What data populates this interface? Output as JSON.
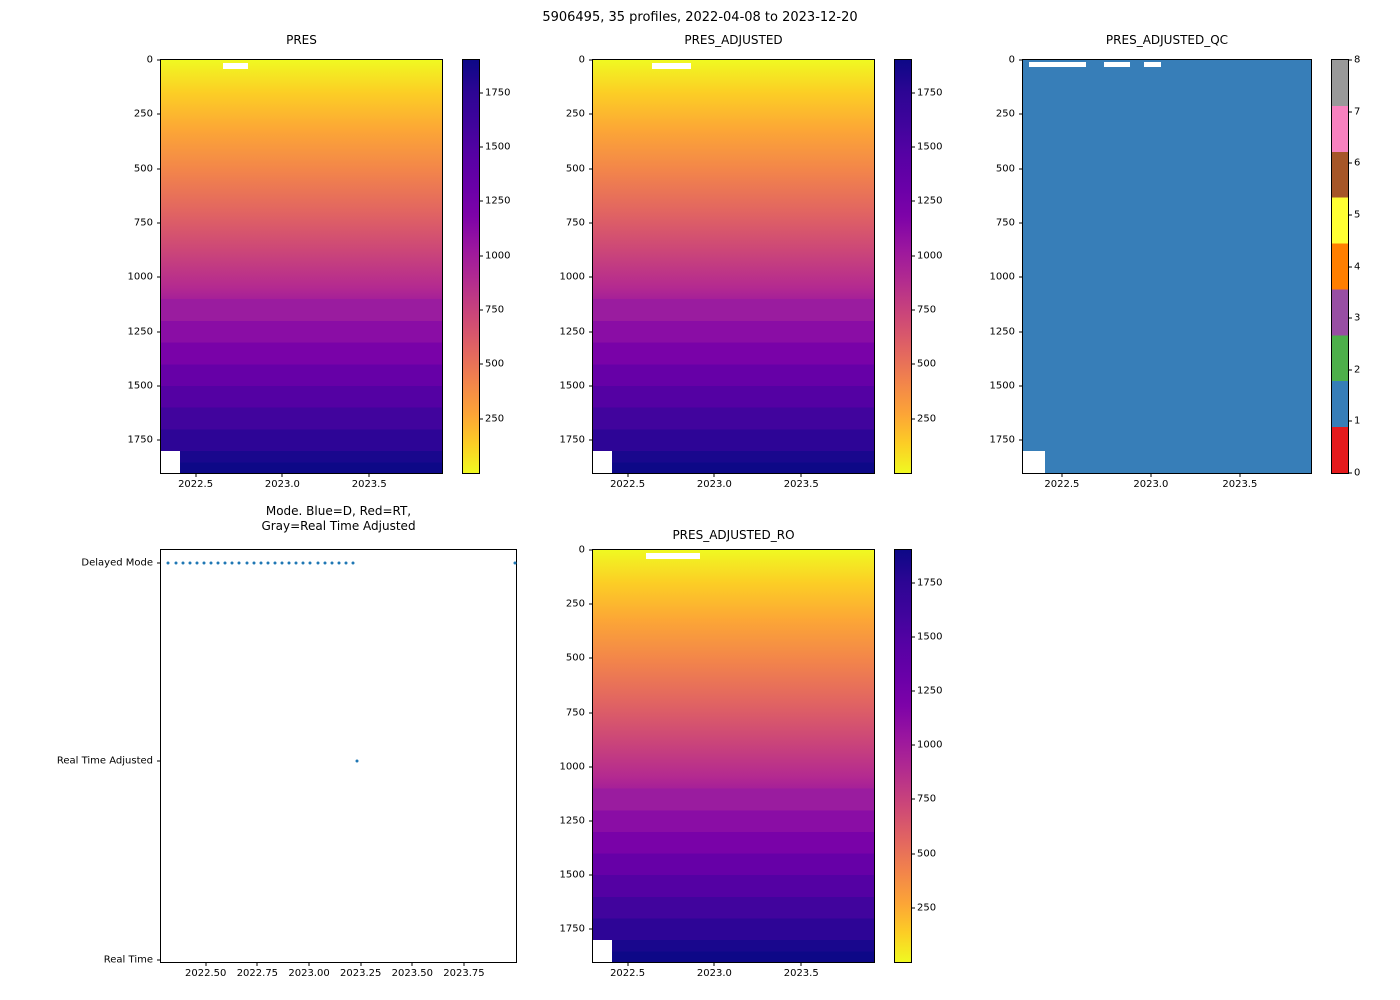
{
  "figure": {
    "suptitle": "5906495, 35 profiles, 2022-04-08 to 2023-12-20"
  },
  "panels": {
    "pres": {
      "title": "PRES"
    },
    "pres_adjusted": {
      "title": "PRES_ADJUSTED"
    },
    "pres_adjusted_qc": {
      "title": "PRES_ADJUSTED_QC"
    },
    "mode": {
      "title_line1": "Mode. Blue=D, Red=RT,",
      "title_line2": "Gray=Real Time Adjusted"
    },
    "pres_adjusted_ro": {
      "title": "PRES_ADJUSTED_RO"
    }
  },
  "ticks": {
    "depth": [
      "0",
      "250",
      "500",
      "750",
      "1000",
      "1250",
      "1500",
      "1750"
    ],
    "year_short": [
      "2022.5",
      "2023.0",
      "2023.5"
    ],
    "year_long": [
      "2022.50",
      "2022.75",
      "2023.00",
      "2023.25",
      "2023.50",
      "2023.75"
    ],
    "pressure_cb": [
      "1750",
      "1500",
      "1250",
      "1000",
      "750",
      "500",
      "250"
    ],
    "qc_cb": [
      "8",
      "7",
      "6",
      "5",
      "4",
      "3",
      "2",
      "1",
      "0"
    ],
    "mode_y": [
      "Delayed Mode",
      "Real Time Adjusted",
      "Real Time"
    ]
  },
  "colors": {
    "qc_fill": "#377eb8",
    "marker": "#1f77b4",
    "plasma_low": "#f0f921",
    "plasma_high": "#0d0887",
    "qc_categories": [
      "#e41a1c",
      "#377eb8",
      "#4daf4a",
      "#984ea3",
      "#ff7f00",
      "#ffff33",
      "#a65628",
      "#f781bf",
      "#999999"
    ]
  },
  "chart_data": [
    {
      "id": "pres",
      "type": "heatmap",
      "title": "PRES",
      "x_range": [
        2022.3,
        2023.92
      ],
      "x_ticks": [
        2022.5,
        2023.0,
        2023.5
      ],
      "y_range": [
        0,
        1900
      ],
      "y_ticks": [
        0,
        250,
        500,
        750,
        1000,
        1250,
        1500,
        1750
      ],
      "value_range": [
        0,
        1900
      ],
      "colorbar_ticks": [
        250,
        500,
        750,
        1000,
        1250,
        1500,
        1750
      ],
      "colormap": "plasma reversed (yellow = low pressure at surface, dark navy = high pressure at depth)",
      "pattern": "pressure increases approximately linearly with depth for all 35 profiles; discrete banding visible below ~1100",
      "missing": [
        "thin white gap near surface around 2022.7",
        "white block below ~1800 before ~2022.35"
      ]
    },
    {
      "id": "pres_adjusted",
      "type": "heatmap",
      "title": "PRES_ADJUSTED",
      "x_range": [
        2022.3,
        2023.92
      ],
      "x_ticks": [
        2022.5,
        2023.0,
        2023.5
      ],
      "y_range": [
        0,
        1900
      ],
      "y_ticks": [
        0,
        250,
        500,
        750,
        1000,
        1250,
        1500,
        1750
      ],
      "value_range": [
        0,
        1900
      ],
      "colorbar_ticks": [
        250,
        500,
        750,
        1000,
        1250,
        1500,
        1750
      ],
      "colormap": "plasma reversed",
      "pattern": "same as PRES: pressure ~ depth, 0 to ~1900 dbar",
      "missing": [
        "thin white gap near surface around 2022.7",
        "white block below ~1800 before ~2022.35"
      ]
    },
    {
      "id": "pres_adjusted_qc",
      "type": "heatmap",
      "title": "PRES_ADJUSTED_QC",
      "x_range": [
        2022.3,
        2023.92
      ],
      "x_ticks": [
        2022.5,
        2023.0,
        2023.5
      ],
      "y_range": [
        0,
        1900
      ],
      "y_ticks": [
        0,
        250,
        500,
        750,
        1000,
        1250,
        1500,
        1750
      ],
      "values": "QC flag = 1 everywhere shown (solid blue)",
      "colorbar_ticks": [
        0,
        1,
        2,
        3,
        4,
        5,
        6,
        7,
        8
      ],
      "colorbar_colors": [
        "red",
        "blue",
        "green",
        "purple",
        "orange",
        "yellow",
        "brown",
        "pink",
        "gray"
      ],
      "missing": [
        "thin white gaps near surface between ~2022.3 and ~2023.0",
        "white block below ~1800 before ~2022.35"
      ]
    },
    {
      "id": "mode",
      "type": "scatter",
      "title": "Mode. Blue=D, Red=RT, Gray=Real Time Adjusted",
      "x_ticks": [
        2022.5,
        2022.75,
        2023.0,
        2023.25,
        2023.5,
        2023.75
      ],
      "x_range": [
        2022.284,
        2023.996
      ],
      "y_categories": [
        "Delayed Mode",
        "Real Time Adjusted",
        "Real Time"
      ],
      "marker_color": "#1f77b4",
      "series": [
        {
          "name": "delayed-mode-run",
          "y": "Delayed Mode",
          "x_start": 2022.32,
          "x_end": 2023.21,
          "count": 27
        },
        {
          "name": "isolated-points",
          "points": [
            {
              "x": 2023.23,
              "y": "Real Time Adjusted"
            },
            {
              "x": 2023.99,
              "y": "Delayed Mode"
            }
          ]
        }
      ]
    },
    {
      "id": "pres_adjusted_ro",
      "type": "heatmap",
      "title": "PRES_ADJUSTED_RO",
      "x_range": [
        2022.3,
        2023.92
      ],
      "x_ticks": [
        2022.5,
        2023.0,
        2023.5
      ],
      "y_range": [
        0,
        1900
      ],
      "y_ticks": [
        0,
        250,
        500,
        750,
        1000,
        1250,
        1500,
        1750
      ],
      "value_range": [
        0,
        1900
      ],
      "colorbar_ticks": [
        250,
        500,
        750,
        1000,
        1250,
        1500,
        1750
      ],
      "colormap": "plasma reversed",
      "pattern": "same as PRES: pressure ~ depth, 0 to ~1900 dbar",
      "missing": [
        "thin white gap near surface around 2022.7",
        "white block below ~1800 before ~2022.35"
      ]
    }
  ]
}
